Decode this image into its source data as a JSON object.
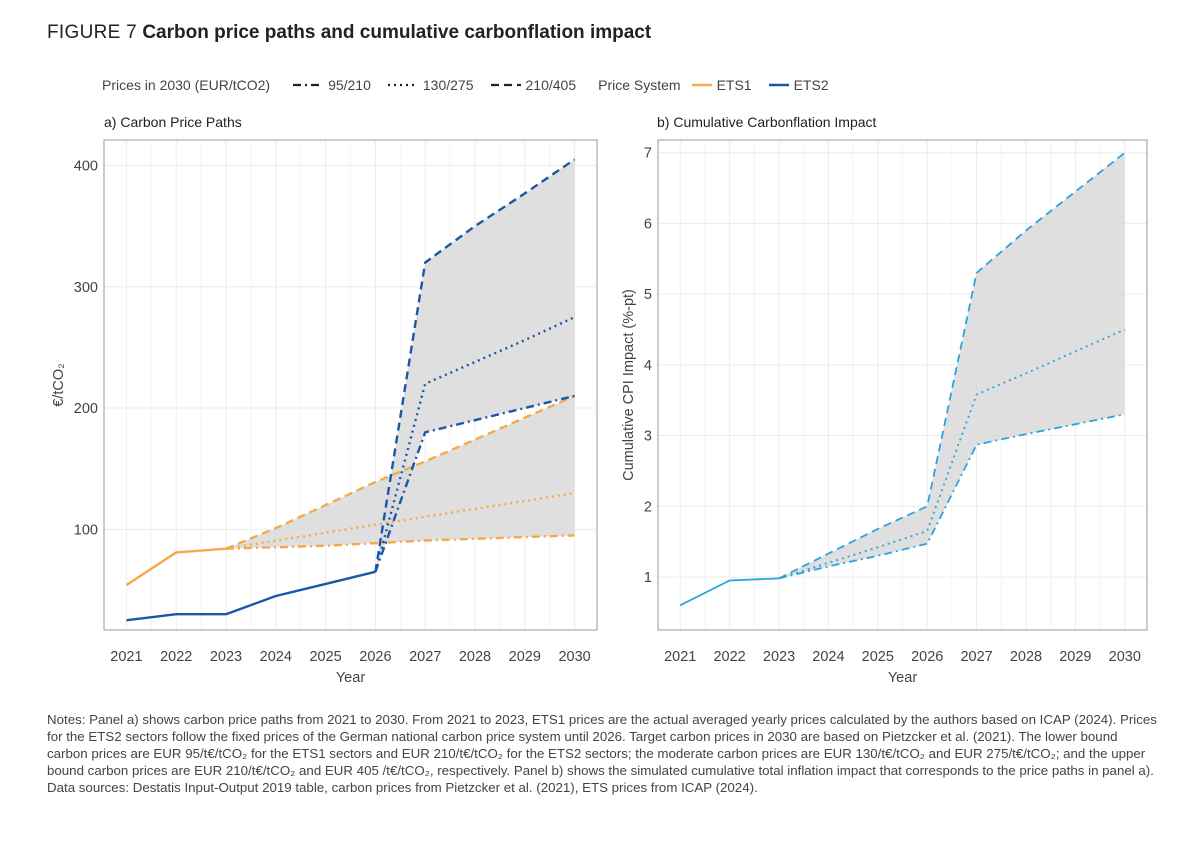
{
  "figure": {
    "label": "FIGURE 7",
    "title": "Carbon price paths and cumulative carbonflation impact"
  },
  "legend": {
    "prices_title": "Prices in 2030 (EUR/tCO2)",
    "prices_items": [
      {
        "label": "95/210",
        "dash": "dashdot"
      },
      {
        "label": "130/275",
        "dash": "dotted"
      },
      {
        "label": "210/405",
        "dash": "dashed"
      }
    ],
    "system_title": "Price System",
    "system_items": [
      {
        "label": "ETS1",
        "color": "#f7a84a"
      },
      {
        "label": "ETS2",
        "color": "#1a57a8"
      }
    ]
  },
  "colors": {
    "ets1": "#f7a84a",
    "ets2": "#1a57a8",
    "cpi": "#2aa3e0",
    "band": "#d9d9d9",
    "grid": "#ececec",
    "border": "#9a9a9a"
  },
  "chart_data": [
    {
      "type": "line",
      "title": "a) Carbon Price Paths",
      "xlabel": "Year",
      "ylabel": "€/tCO₂",
      "x": [
        2021,
        2022,
        2023,
        2024,
        2025,
        2026,
        2027,
        2028,
        2029,
        2030
      ],
      "xlim": [
        2020.55,
        2030.45
      ],
      "ylim": [
        17,
        421
      ],
      "yticks": [
        100,
        200,
        300,
        400
      ],
      "grid": true,
      "series": [
        {
          "system": "ETS1",
          "scenario": "common",
          "points": [
            [
              2021,
              54
            ],
            [
              2022,
              81
            ],
            [
              2023,
              84
            ]
          ]
        },
        {
          "system": "ETS1",
          "scenario": "95/210",
          "points": [
            [
              2023,
              84
            ],
            [
              2024,
              85.2
            ],
            [
              2025,
              86.5
            ],
            [
              2026,
              88.6
            ],
            [
              2027,
              90.8
            ],
            [
              2028,
              92.2
            ],
            [
              2029,
              93.6
            ],
            [
              2030,
              95
            ]
          ]
        },
        {
          "system": "ETS1",
          "scenario": "130/275",
          "points": [
            [
              2023,
              84
            ],
            [
              2024,
              90.6
            ],
            [
              2025,
              97.2
            ],
            [
              2026,
              103.8
            ],
            [
              2027,
              110.3
            ],
            [
              2028,
              116.9
            ],
            [
              2029,
              123.4
            ],
            [
              2030,
              130
            ]
          ]
        },
        {
          "system": "ETS1",
          "scenario": "210/405",
          "points": [
            [
              2023,
              84
            ],
            [
              2024,
              101
            ],
            [
              2025,
              120
            ],
            [
              2026,
              139
            ],
            [
              2027,
              156
            ],
            [
              2028,
              174
            ],
            [
              2029,
              192
            ],
            [
              2030,
              210
            ]
          ]
        },
        {
          "system": "ETS2",
          "scenario": "common",
          "points": [
            [
              2021,
              25
            ],
            [
              2022,
              30
            ],
            [
              2023,
              30
            ],
            [
              2024,
              45
            ],
            [
              2025,
              55
            ],
            [
              2026,
              65
            ]
          ]
        },
        {
          "system": "ETS2",
          "scenario": "95/210",
          "points": [
            [
              2026,
              65
            ],
            [
              2027,
              180
            ],
            [
              2028,
              190
            ],
            [
              2029,
              200
            ],
            [
              2030,
              210
            ]
          ]
        },
        {
          "system": "ETS2",
          "scenario": "130/275",
          "points": [
            [
              2026,
              65
            ],
            [
              2027,
              220
            ],
            [
              2028,
              238
            ],
            [
              2029,
              256
            ],
            [
              2030,
              275
            ]
          ]
        },
        {
          "system": "ETS2",
          "scenario": "210/405",
          "points": [
            [
              2026,
              65
            ],
            [
              2027,
              320
            ],
            [
              2028,
              350
            ],
            [
              2029,
              377
            ],
            [
              2030,
              405
            ]
          ]
        }
      ]
    },
    {
      "type": "line",
      "title": "b) Cumulative Carbonflation Impact",
      "xlabel": "Year",
      "ylabel": "Cumulative CPI Impact (%-pt)",
      "x": [
        2021,
        2022,
        2023,
        2024,
        2025,
        2026,
        2027,
        2028,
        2029,
        2030
      ],
      "xlim": [
        2020.55,
        2030.45
      ],
      "ylim": [
        0.25,
        7.18
      ],
      "yticks": [
        1,
        2,
        3,
        4,
        5,
        6,
        7
      ],
      "grid": true,
      "series": [
        {
          "scenario": "common",
          "points": [
            [
              2021,
              0.6
            ],
            [
              2022,
              0.95
            ],
            [
              2023,
              0.98
            ]
          ]
        },
        {
          "scenario": "95/210",
          "points": [
            [
              2023,
              0.98
            ],
            [
              2024,
              1.15
            ],
            [
              2025,
              1.3
            ],
            [
              2026,
              1.47
            ],
            [
              2027,
              2.87
            ],
            [
              2028,
              3.02
            ],
            [
              2029,
              3.16
            ],
            [
              2030,
              3.3
            ]
          ]
        },
        {
          "scenario": "130/275",
          "points": [
            [
              2023,
              0.98
            ],
            [
              2024,
              1.2
            ],
            [
              2025,
              1.42
            ],
            [
              2026,
              1.65
            ],
            [
              2027,
              3.58
            ],
            [
              2028,
              3.88
            ],
            [
              2029,
              4.19
            ],
            [
              2030,
              4.5
            ]
          ]
        },
        {
          "scenario": "210/405",
          "points": [
            [
              2023,
              0.98
            ],
            [
              2024,
              1.33
            ],
            [
              2025,
              1.68
            ],
            [
              2026,
              2.0
            ],
            [
              2027,
              5.3
            ],
            [
              2028,
              5.9
            ],
            [
              2029,
              6.45
            ],
            [
              2030,
              7.0
            ]
          ]
        }
      ]
    }
  ],
  "notes": "Notes: Panel a) shows carbon price paths from 2021 to 2030. From 2021 to 2023, ETS1 prices are the actual averaged yearly prices calculated by the authors based on ICAP (2024). Prices for the ETS2 sectors follow the fixed prices of the German national carbon price system until 2026. Target carbon prices in 2030 are based on Pietzcker et al. (2021). The lower bound carbon prices are EUR 95/t€/tCO₂ for the ETS1 sectors and EUR 210/t€/tCO₂ for the ETS2 sectors; the moderate carbon prices are EUR 130/t€/tCO₂ and EUR 275/t€/tCO₂; and the upper bound carbon prices are EUR 210/t€/tCO₂ and EUR 405 /t€/tCO₂, respectively. Panel b) shows the simulated cumulative total inflation impact that corresponds to the price paths in panel a). Data sources: Destatis Input-Output 2019 table, carbon prices from Pietzcker et al. (2021), ETS prices from ICAP (2024)."
}
